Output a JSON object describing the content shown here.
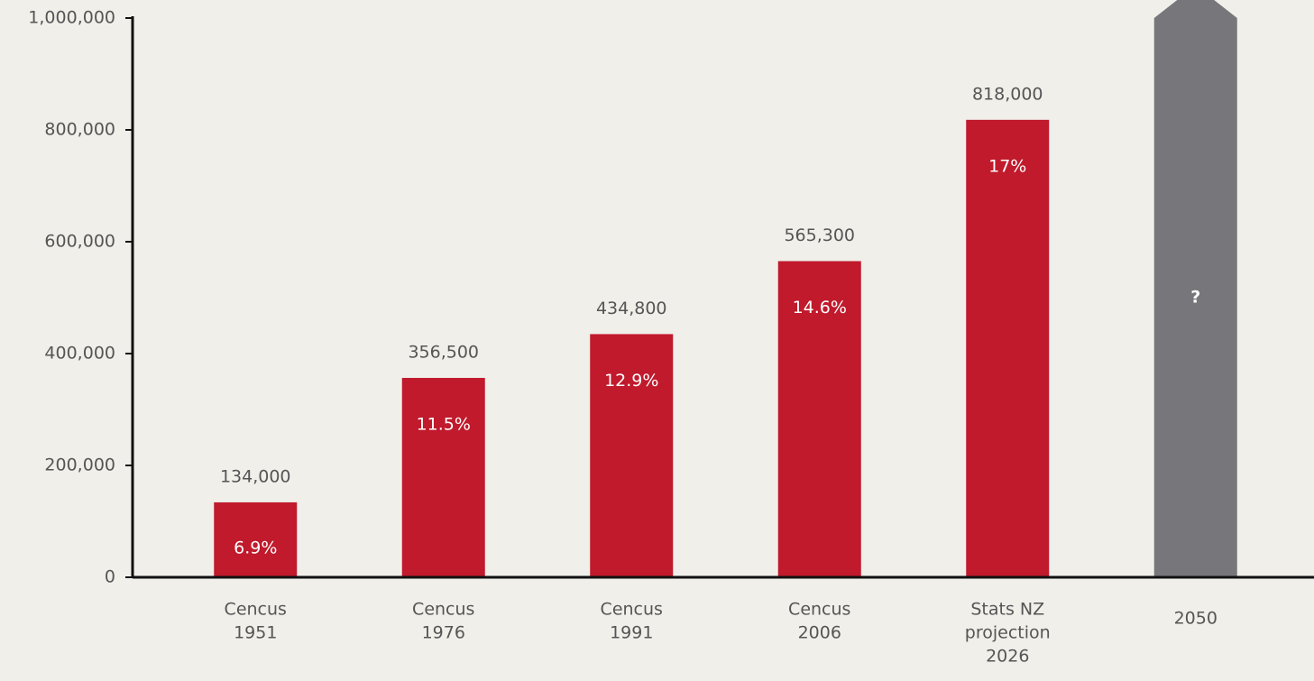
{
  "chart_data": {
    "type": "bar",
    "categories": [
      [
        "Cencus",
        "1951"
      ],
      [
        "Cencus",
        "1976"
      ],
      [
        "Cencus",
        "1991"
      ],
      [
        "Cencus",
        "2006"
      ],
      [
        "Stats NZ",
        "projection",
        "2026"
      ],
      [
        "2050"
      ]
    ],
    "values": [
      134000,
      356500,
      434800,
      565300,
      818000,
      null
    ],
    "value_labels": [
      "134,000",
      "356,500",
      "434,800",
      "565,300",
      "818,000",
      null
    ],
    "share_labels": [
      "6.9%",
      "11.5%",
      "12.9%",
      "14.6%",
      "17%",
      null
    ],
    "unknown_label": "?",
    "color": "#c01a2c",
    "unknown_color": "#77767a",
    "ylim": [
      0,
      1000000
    ],
    "yticks": [
      0,
      {
        "value": 200000,
        "label": "200,000"
      },
      {
        "value": 400000,
        "label": "400,000"
      },
      {
        "value": 600000,
        "label": "600,000"
      },
      {
        "value": 800000,
        "label": "800,000"
      },
      {
        "value": 1000000,
        "label": "1,000,000"
      }
    ]
  }
}
